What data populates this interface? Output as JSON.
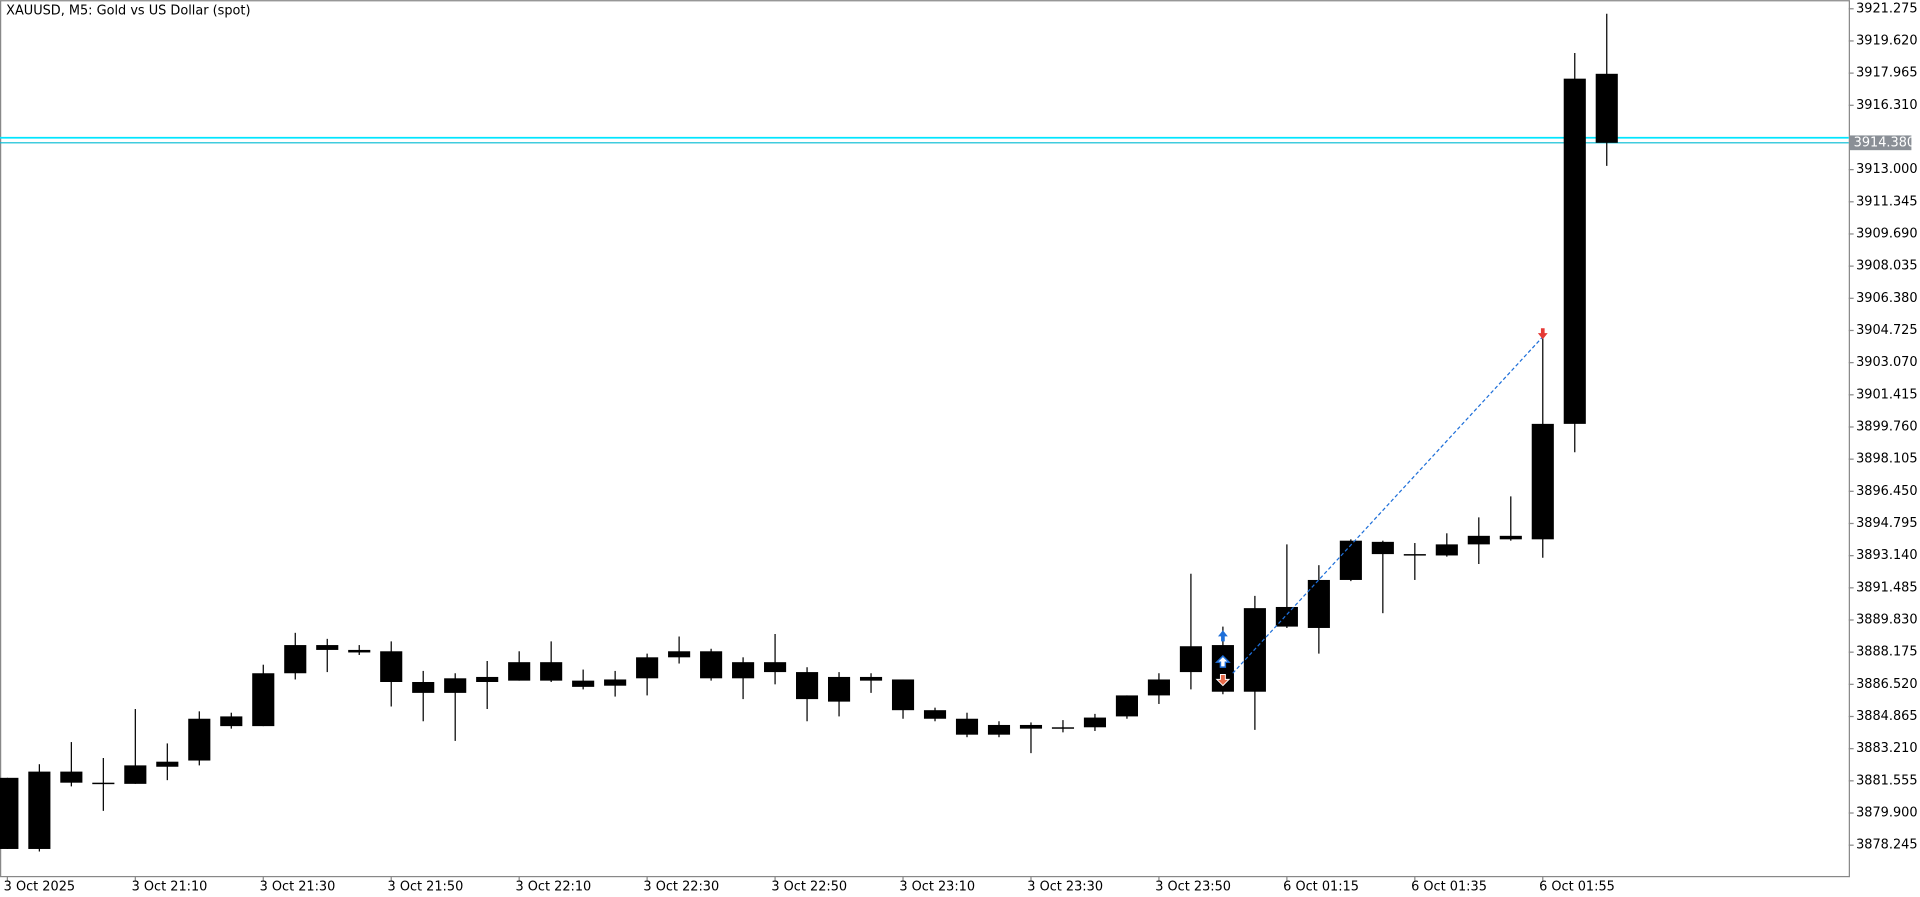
{
  "chart_data": {
    "type": "candlestick",
    "title": "XAUUSD, M5:  Gold vs US Dollar (spot)",
    "categories": [
      "3 Oct 2025",
      null,
      null,
      null,
      "3 Oct 21:10",
      null,
      null,
      null,
      "3 Oct 21:30",
      null,
      null,
      null,
      "3 Oct 21:50",
      null,
      null,
      null,
      "3 Oct 22:10",
      null,
      null,
      null,
      "3 Oct 22:30",
      null,
      null,
      null,
      "3 Oct 22:50",
      null,
      null,
      null,
      "3 Oct 23:10",
      null,
      null,
      null,
      "3 Oct 23:30",
      null,
      null,
      null,
      "3 Oct 23:50",
      null,
      null,
      null,
      "6 Oct 01:15",
      null,
      null,
      null,
      "6 Oct 01:35",
      null,
      null,
      null,
      "6 Oct 01:55",
      null,
      null
    ],
    "open": [
      3881.71,
      3878.05,
      3882.03,
      3881.46,
      3881.4,
      3882.28,
      3882.6,
      3884.37,
      3884.37,
      3887.09,
      3888.29,
      3888.29,
      3888.22,
      3886.64,
      3886.08,
      3886.64,
      3886.71,
      3887.66,
      3886.71,
      3886.45,
      3886.83,
      3887.91,
      3888.22,
      3886.83,
      3887.66,
      3887.15,
      3885.63,
      3886.9,
      3886.77,
      3885.19,
      3884.75,
      3883.93,
      3884.43,
      3884.24,
      3884.31,
      3884.87,
      3885.95,
      3887.15,
      3888.54,
      3886.14,
      3889.49,
      3889.42,
      3891.89,
      3893.85,
      3893.22,
      3893.15,
      3893.72,
      3893.98,
      3893.98,
      3899.92,
      3917.93
    ],
    "high": [
      3881.71,
      3882.41,
      3883.55,
      3882.73,
      3885.25,
      3883.48,
      3885.13,
      3885.06,
      3887.53,
      3889.17,
      3888.86,
      3888.54,
      3888.73,
      3887.21,
      3887.09,
      3887.72,
      3888.22,
      3888.73,
      3887.28,
      3887.21,
      3888.1,
      3888.98,
      3888.35,
      3887.91,
      3889.11,
      3887.4,
      3887.15,
      3887.09,
      3886.77,
      3885.32,
      3885.06,
      3884.62,
      3884.56,
      3884.68,
      3885.0,
      3885.95,
      3887.09,
      3892.21,
      3889.49,
      3891.07,
      3893.72,
      3892.65,
      3893.98,
      3893.91,
      3893.79,
      3894.29,
      3895.11,
      3896.19,
      3904.4,
      3919.0,
      3921.02
    ],
    "low": [
      3878.05,
      3877.92,
      3881.27,
      3880.01,
      3881.4,
      3881.59,
      3882.35,
      3884.24,
      3884.37,
      3886.77,
      3887.15,
      3888.03,
      3885.38,
      3884.62,
      3883.61,
      3885.25,
      3886.71,
      3886.64,
      3886.26,
      3885.89,
      3885.95,
      3887.59,
      3886.71,
      3885.76,
      3886.52,
      3884.62,
      3884.87,
      3886.08,
      3884.75,
      3884.62,
      3883.8,
      3883.8,
      3882.98,
      3884.05,
      3884.12,
      3884.75,
      3885.51,
      3886.26,
      3886.01,
      3884.18,
      3889.42,
      3888.1,
      3891.83,
      3890.18,
      3891.89,
      3893.09,
      3892.71,
      3893.91,
      3893.03,
      3898.46,
      3913.19
    ],
    "close": [
      3878.05,
      3882.03,
      3881.46,
      3881.4,
      3882.35,
      3882.54,
      3884.75,
      3884.87,
      3887.09,
      3888.54,
      3888.54,
      3888.16,
      3886.64,
      3886.08,
      3886.83,
      3886.9,
      3887.66,
      3886.71,
      3886.39,
      3886.77,
      3887.91,
      3888.22,
      3886.83,
      3887.66,
      3887.15,
      3885.76,
      3886.9,
      3886.71,
      3885.19,
      3884.75,
      3883.93,
      3884.43,
      3884.24,
      3884.31,
      3884.81,
      3885.95,
      3886.77,
      3888.48,
      3886.14,
      3890.44,
      3890.5,
      3891.89,
      3893.91,
      3893.22,
      3893.15,
      3893.72,
      3894.16,
      3894.16,
      3899.92,
      3917.68,
      3914.38
    ],
    "color": "#000000",
    "ylim": [
      3876.66,
      3921.72
    ],
    "yticks": [
      {
        "value": 3878.245,
        "label": "3878.245"
      },
      {
        "value": 3879.9,
        "label": "3879.900"
      },
      {
        "value": 3881.555,
        "label": "3881.555"
      },
      {
        "value": 3883.21,
        "label": "3883.210"
      },
      {
        "value": 3884.865,
        "label": "3884.865"
      },
      {
        "value": 3886.52,
        "label": "3886.520"
      },
      {
        "value": 3888.175,
        "label": "3888.175"
      },
      {
        "value": 3889.83,
        "label": "3889.830"
      },
      {
        "value": 3891.485,
        "label": "3891.485"
      },
      {
        "value": 3893.14,
        "label": "3893.140"
      },
      {
        "value": 3894.795,
        "label": "3894.795"
      },
      {
        "value": 3896.45,
        "label": "3896.450"
      },
      {
        "value": 3898.105,
        "label": "3898.105"
      },
      {
        "value": 3899.76,
        "label": "3899.760"
      },
      {
        "value": 3901.415,
        "label": "3901.415"
      },
      {
        "value": 3903.07,
        "label": "3903.070"
      },
      {
        "value": 3904.725,
        "label": "3904.725"
      },
      {
        "value": 3906.38,
        "label": "3906.380"
      },
      {
        "value": 3908.035,
        "label": "3908.035"
      },
      {
        "value": 3909.69,
        "label": "3909.690"
      },
      {
        "value": 3911.345,
        "label": "3911.345"
      },
      {
        "value": 3913.0,
        "label": "3913.000"
      },
      {
        "value": 3916.31,
        "label": "3916.310"
      },
      {
        "value": 3917.965,
        "label": "3917.965"
      },
      {
        "value": 3919.62,
        "label": "3919.620"
      },
      {
        "value": 3921.275,
        "label": "3921.275"
      }
    ],
    "price_line": {
      "value": 3914.38,
      "label": "3914.380",
      "color": "#00bcd4"
    },
    "level_line": {
      "value": 3914.64,
      "color": "#00e5ff"
    },
    "trade": {
      "open_candle": 38,
      "open_price": 3887.09,
      "close_candle": 48,
      "close_price": 3904.4,
      "color": "#1e6fd9"
    }
  }
}
